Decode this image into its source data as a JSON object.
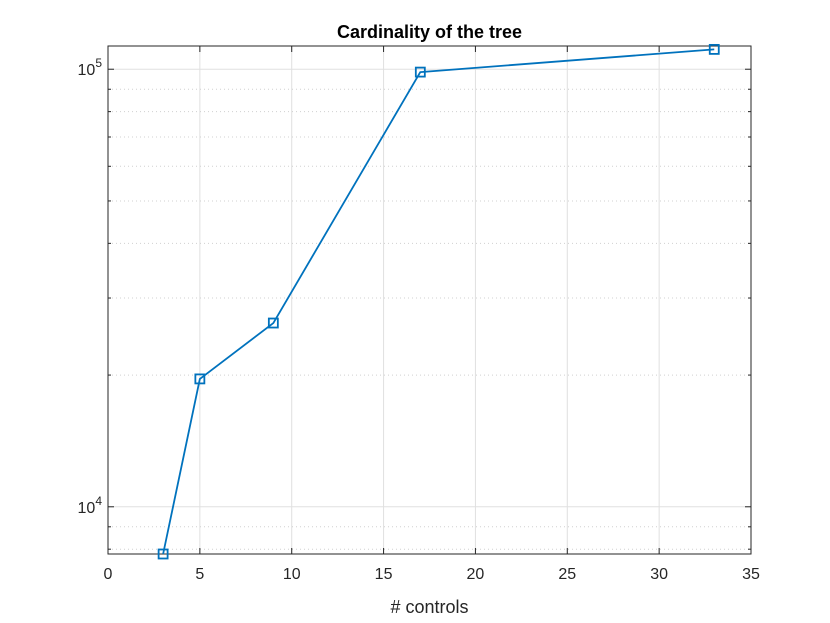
{
  "chart_data": {
    "type": "line",
    "title": "Cardinality of the tree",
    "xlabel": "# controls",
    "ylabel": "",
    "xlim": [
      0,
      35
    ],
    "ylim": [
      7800,
      113000
    ],
    "yscale": "log",
    "grid": true,
    "minor_grid": true,
    "x_ticks": [
      0,
      5,
      10,
      15,
      20,
      25,
      30,
      35
    ],
    "x_tick_labels": [
      "0",
      "5",
      "10",
      "15",
      "20",
      "25",
      "30",
      "35"
    ],
    "y_ticks": [
      10000,
      100000
    ],
    "y_tick_labels": [
      {
        "base": "10",
        "exp": "4"
      },
      {
        "base": "10",
        "exp": "5"
      }
    ],
    "marker": "square",
    "series": [
      {
        "color": "#0072BD",
        "x": [
          3,
          5,
          9,
          17,
          33
        ],
        "y": [
          7800,
          19600,
          26300,
          98500,
          111000
        ]
      }
    ]
  }
}
